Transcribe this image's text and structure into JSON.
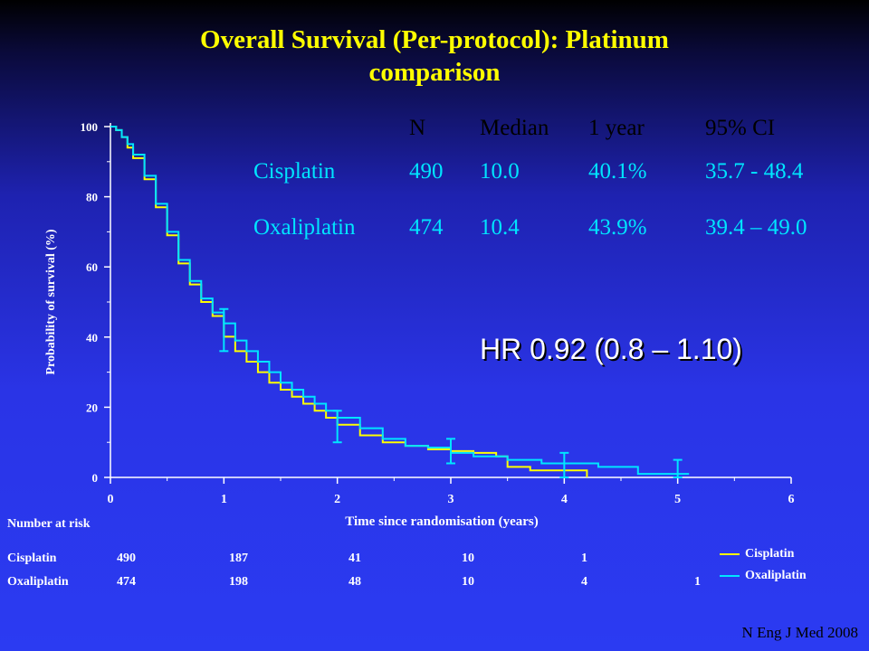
{
  "title_line1": "Overall Survival (Per-protocol): Platinum",
  "title_line2": "comparison",
  "chart_data": {
    "type": "line",
    "title": "",
    "xlabel": "Time since randomisation (years)",
    "ylabel": "Probability of survival (%)",
    "xlim": [
      0,
      6
    ],
    "ylim": [
      0,
      100
    ],
    "xticks": [
      0,
      1,
      2,
      3,
      4,
      5,
      6
    ],
    "yticks": [
      0,
      20,
      40,
      60,
      80,
      100
    ],
    "colors": {
      "Cisplatin": "#ffff00",
      "Oxaliplatin": "#00e5ff"
    },
    "series": [
      {
        "name": "Cisplatin",
        "x": [
          0,
          0.05,
          0.1,
          0.15,
          0.2,
          0.3,
          0.4,
          0.5,
          0.6,
          0.7,
          0.8,
          0.9,
          1.0,
          1.1,
          1.2,
          1.3,
          1.4,
          1.5,
          1.6,
          1.7,
          1.8,
          1.9,
          2.0,
          2.2,
          2.4,
          2.6,
          2.8,
          3.0,
          3.2,
          3.4,
          3.5,
          3.7,
          3.9,
          4.0,
          4.1,
          4.17,
          4.2
        ],
        "y": [
          100,
          99,
          97,
          94,
          91,
          85,
          77,
          69,
          61,
          55,
          50,
          46,
          40.1,
          36,
          33,
          30,
          27,
          25,
          23,
          21,
          19,
          17,
          15,
          12,
          10,
          9,
          8,
          7.5,
          7,
          6,
          3,
          2,
          2,
          2,
          2,
          2,
          0
        ]
      },
      {
        "name": "Oxaliplatin",
        "x": [
          0,
          0.05,
          0.1,
          0.15,
          0.2,
          0.3,
          0.4,
          0.5,
          0.6,
          0.7,
          0.8,
          0.9,
          1.0,
          1.1,
          1.2,
          1.3,
          1.4,
          1.5,
          1.6,
          1.7,
          1.8,
          1.9,
          2.0,
          2.2,
          2.4,
          2.6,
          2.8,
          3.0,
          3.2,
          3.5,
          3.8,
          4.0,
          4.3,
          4.6,
          4.65,
          5.0,
          5.1
        ],
        "y": [
          100,
          99,
          97,
          95,
          92,
          86,
          78,
          70,
          62,
          56,
          51,
          47,
          43.9,
          39,
          36,
          33,
          30,
          27,
          25,
          23,
          21,
          19,
          17,
          14,
          11,
          9,
          8.5,
          7,
          6,
          5,
          4,
          4,
          3,
          3,
          1,
          1,
          1
        ]
      }
    ],
    "error_bars": [
      {
        "x": 1.0,
        "low": 36,
        "high": 48
      },
      {
        "x": 2.0,
        "low": 10,
        "high": 19
      },
      {
        "x": 3.0,
        "low": 4,
        "high": 11
      },
      {
        "x": 4.0,
        "low": 0,
        "high": 7
      },
      {
        "x": 5.0,
        "low": 0,
        "high": 5
      }
    ]
  },
  "stats_table": {
    "headers": [
      "N",
      "Median",
      "1 year",
      "95% CI"
    ],
    "rows": [
      [
        "Cisplatin",
        "490",
        "10.0",
        "40.1%",
        "35.7 - 48.4"
      ],
      [
        "Oxaliplatin",
        "474",
        "10.4",
        "43.9%",
        "39.4 – 49.0"
      ]
    ]
  },
  "hr_text": "HR 0.92 (0.8 – 1.10)",
  "risk_table": {
    "title": "Number at risk",
    "rows": [
      {
        "label": "Cisplatin",
        "values": [
          "490",
          "187",
          "41",
          "10",
          "1",
          ""
        ]
      },
      {
        "label": "Oxaliplatin",
        "values": [
          "474",
          "198",
          "48",
          "10",
          "4",
          "1"
        ]
      }
    ]
  },
  "legend": [
    "Cisplatin",
    "Oxaliplatin"
  ],
  "source": "N Eng J Med 2008"
}
